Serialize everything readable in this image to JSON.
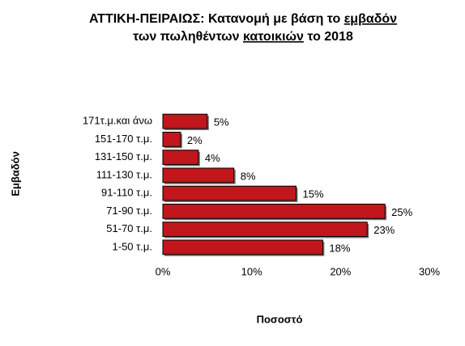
{
  "chart_data": {
    "type": "bar",
    "orientation": "horizontal",
    "title_lines": [
      [
        {
          "text": "ΑΤΤΙΚΗ-ΠΕΙΡΑΙΩΣ:  Κατανομή με βάση το ",
          "underline": false
        },
        {
          "text": "εμβαδόν",
          "underline": true
        }
      ],
      [
        {
          "text": "των πωληθέντων ",
          "underline": false
        },
        {
          "text": "κατοικιών",
          "underline": true
        },
        {
          "text": " το 2018",
          "underline": false
        }
      ]
    ],
    "x_label": "Ποσοστό",
    "y_label": "Εμβαδόν",
    "categories": [
      "171τ.μ.και άνω",
      "151-170 τ.μ.",
      "131-150 τ.μ.",
      "111-130 τ.μ.",
      "91-110 τ.μ.",
      "71-90 τ.μ.",
      "51-70 τ.μ.",
      "1-50 τ.μ."
    ],
    "values": [
      5,
      2,
      4,
      8,
      15,
      25,
      23,
      18
    ],
    "value_labels": [
      "5%",
      "2%",
      "4%",
      "8%",
      "15%",
      "25%",
      "23%",
      "18%"
    ],
    "color": "#c0161c",
    "xlim": [
      0,
      30
    ],
    "xticks": [
      {
        "value": 0,
        "label": "0%"
      },
      {
        "value": 10,
        "label": "10%"
      },
      {
        "value": 20,
        "label": "20%"
      },
      {
        "value": 30,
        "label": "30%"
      }
    ],
    "grid": false
  }
}
